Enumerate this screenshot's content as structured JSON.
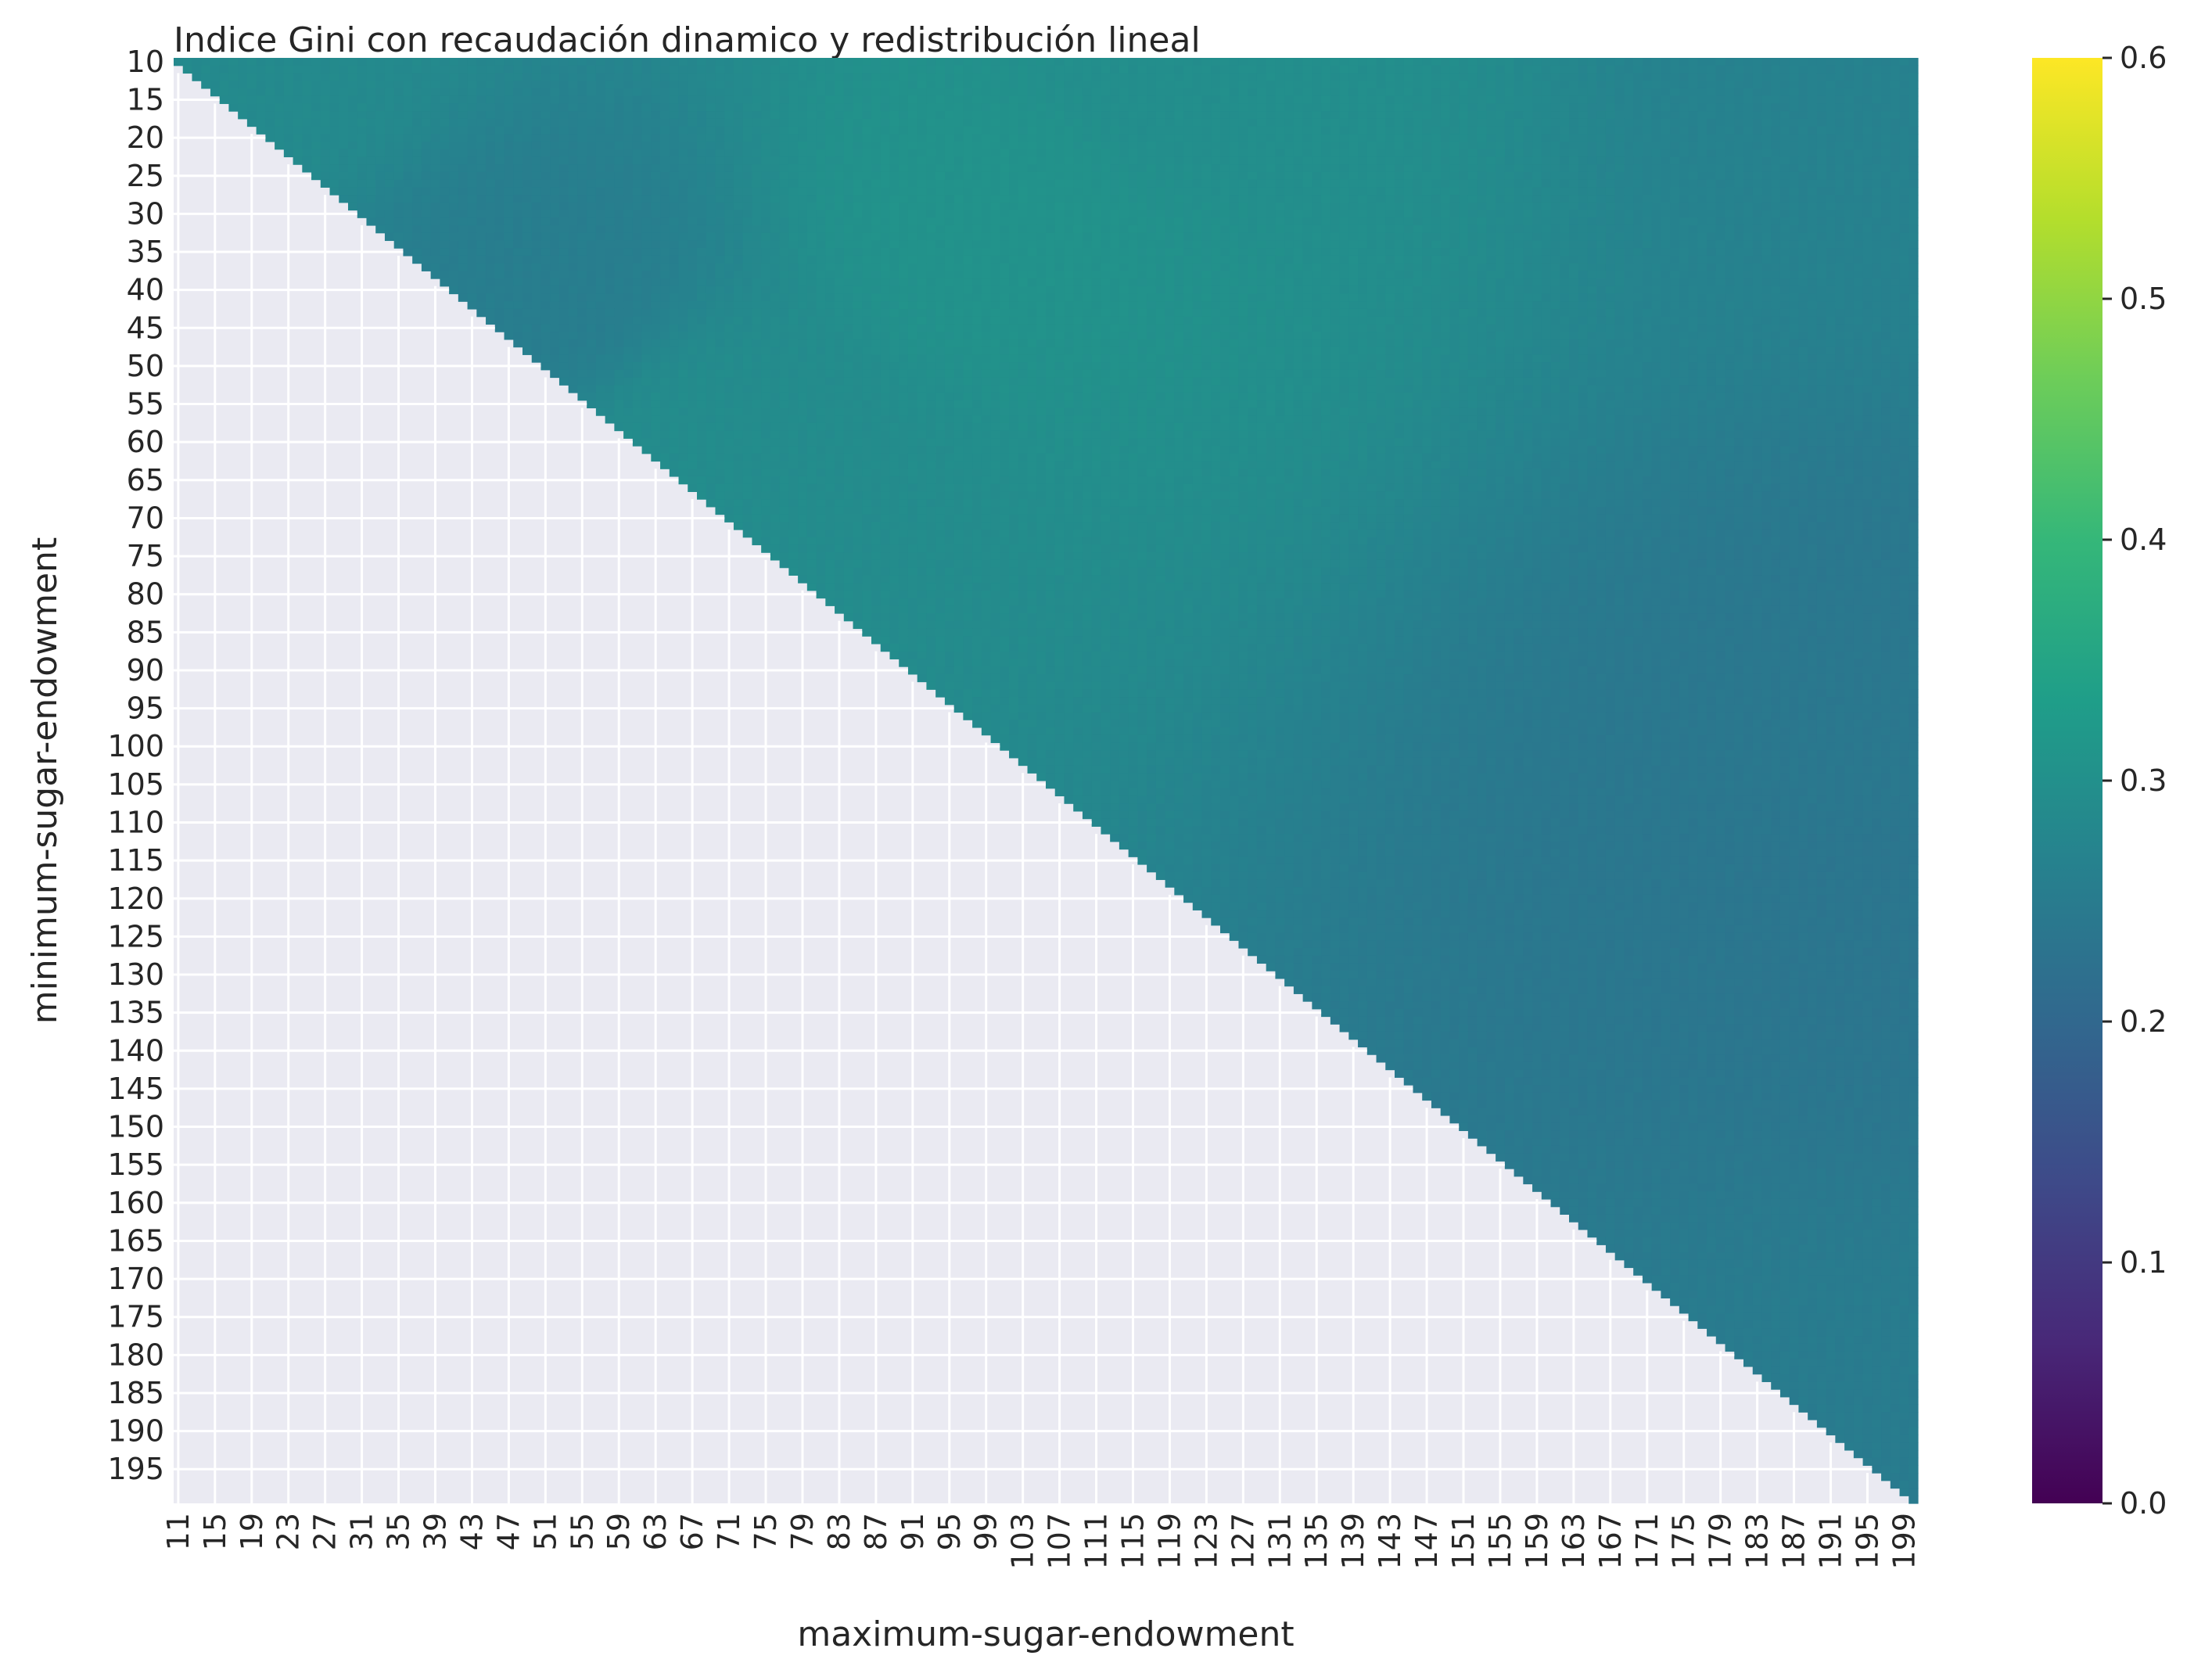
{
  "chart_data": {
    "type": "heatmap",
    "title": "Indice Gini con recaudación dinamico y redistribución lineal",
    "xlabel": "maximum-sugar-endowment",
    "ylabel": "minimum-sugar-endowment",
    "x_range": [
      11,
      200
    ],
    "y_range": [
      10,
      199
    ],
    "mask": "cells where maximum-sugar-endowment <= minimum-sugar-endowment are empty (upper-triangle filled)",
    "x_tick_labels": [
      "11",
      "15",
      "19",
      "23",
      "27",
      "31",
      "35",
      "39",
      "43",
      "47",
      "51",
      "55",
      "59",
      "63",
      "67",
      "71",
      "75",
      "79",
      "83",
      "87",
      "91",
      "95",
      "99",
      "103",
      "107",
      "111",
      "115",
      "119",
      "123",
      "127",
      "131",
      "135",
      "139",
      "143",
      "147",
      "151",
      "155",
      "159",
      "163",
      "167",
      "171",
      "175",
      "179",
      "183",
      "187",
      "191",
      "195",
      "199"
    ],
    "y_tick_labels": [
      "10",
      "15",
      "20",
      "25",
      "30",
      "35",
      "40",
      "45",
      "50",
      "55",
      "60",
      "65",
      "70",
      "75",
      "80",
      "85",
      "90",
      "95",
      "100",
      "105",
      "110",
      "115",
      "120",
      "125",
      "130",
      "135",
      "140",
      "145",
      "150",
      "155",
      "160",
      "165",
      "170",
      "175",
      "180",
      "185",
      "190",
      "195"
    ],
    "colorbar": {
      "colormap": "viridis",
      "vmin": 0.0,
      "vmax": 0.6,
      "tick_labels": [
        "0.0",
        "0.1",
        "0.2",
        "0.3",
        "0.4",
        "0.5",
        "0.6"
      ]
    },
    "value_anchors": [
      {
        "min": 10,
        "max": 20,
        "gini": 0.285
      },
      {
        "min": 10,
        "max": 120,
        "gini": 0.295
      },
      {
        "min": 10,
        "max": 200,
        "gini": 0.265
      },
      {
        "min": 30,
        "max": 100,
        "gini": 0.305
      },
      {
        "min": 40,
        "max": 50,
        "gini": 0.255
      },
      {
        "min": 60,
        "max": 70,
        "gini": 0.29
      },
      {
        "min": 100,
        "max": 200,
        "gini": 0.24
      },
      {
        "min": 120,
        "max": 200,
        "gini": 0.235
      },
      {
        "min": 195,
        "max": 199,
        "gini": 0.25
      }
    ],
    "background_color": "#eaeaf2",
    "grid": true
  }
}
